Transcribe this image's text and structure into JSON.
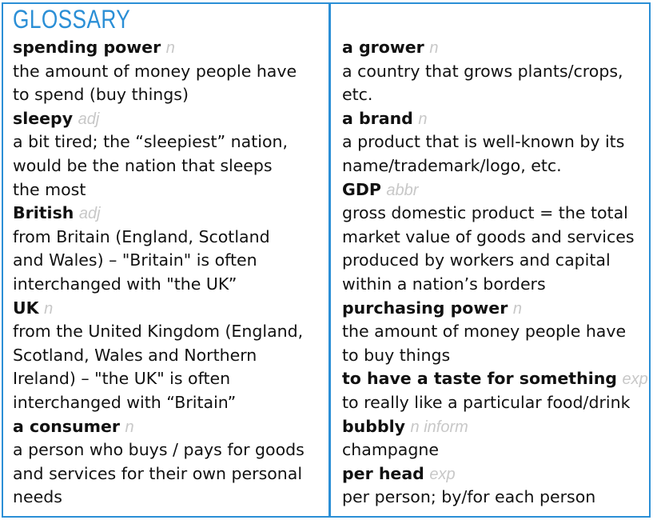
{
  "title": "GLOSSARY",
  "left": [
    {
      "term": "spending power",
      "pos": "n",
      "def": [
        "the amount of money people have",
        "to spend (buy things)"
      ]
    },
    {
      "term": "sleepy",
      "pos": "adj",
      "def": [
        "a bit tired; the “sleepiest” nation,",
        "would be the nation that sleeps",
        "the most"
      ]
    },
    {
      "term": "British",
      "pos": "adj",
      "def": [
        "from Britain (England, Scotland",
        "and Wales) – \"Britain\" is often",
        "interchanged with \"the UK”"
      ]
    },
    {
      "term": "UK",
      "pos": "n",
      "def": [
        "from the United Kingdom (England,",
        "Scotland, Wales and Northern",
        "Ireland) – \"the UK\" is often",
        "interchanged with “Britain”"
      ]
    },
    {
      "term": "a consumer",
      "pos": "n",
      "def": [
        "a person who buys / pays for goods",
        "and services for their own personal",
        "needs"
      ]
    }
  ],
  "right": [
    {
      "term": "a grower",
      "pos": "n",
      "def": [
        "a country that grows plants/crops,",
        "etc."
      ]
    },
    {
      "term": "a brand",
      "pos": "n",
      "def": [
        "a product that is well-known by its",
        "name/trademark/logo, etc."
      ]
    },
    {
      "term": "GDP",
      "pos": "abbr",
      "def": [
        "gross domestic product = the total",
        "market value of goods and services",
        "produced by workers and capital",
        "within a nation’s borders"
      ]
    },
    {
      "term": "purchasing power",
      "pos": "n",
      "def": [
        "the amount of money people have",
        "to buy things"
      ]
    },
    {
      "term": "to have a taste for something",
      "pos": "exp",
      "def": [
        "to really like a particular food/drink"
      ]
    },
    {
      "term": "bubbly",
      "pos": "n inform",
      "def": [
        "champagne"
      ]
    },
    {
      "term": "per head",
      "pos": "exp",
      "def": [
        "per person; by/for each person"
      ]
    }
  ]
}
